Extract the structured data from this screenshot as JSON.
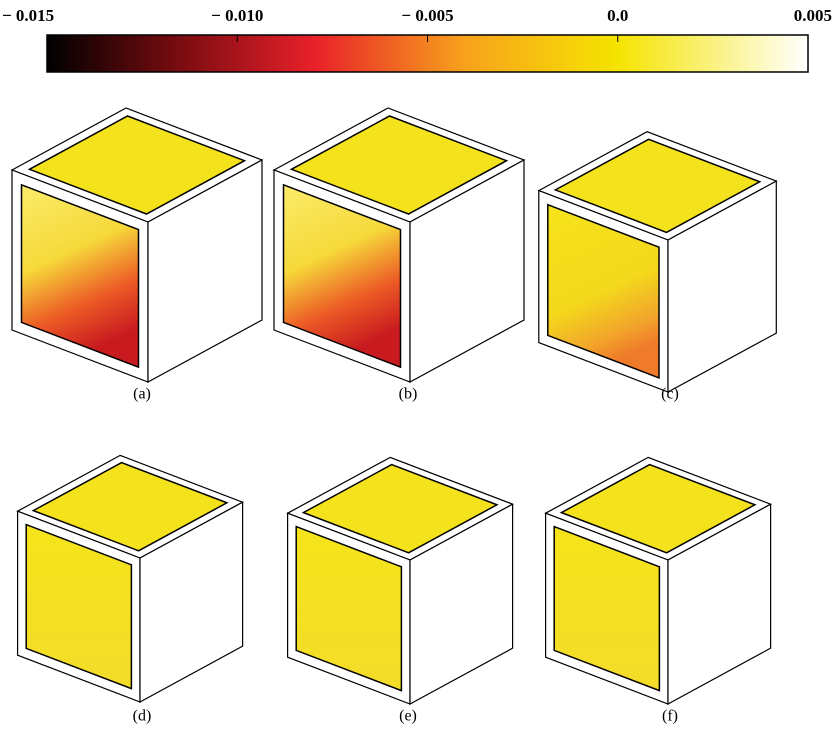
{
  "chart_data": {
    "type": "colorbar",
    "xlim": [
      -0.015,
      0.005
    ],
    "xticks": [
      {
        "value": -0.015,
        "label": "− 0.015"
      },
      {
        "value": -0.01,
        "label": "− 0.010"
      },
      {
        "value": -0.005,
        "label": "− 0.005"
      },
      {
        "value": 0,
        "label": "0.0"
      },
      0.005
    ],
    "colormap": [
      {
        "value": -0.015,
        "color": "#000000"
      },
      {
        "value": -0.0115,
        "color": "#7a0c10"
      },
      {
        "value": -0.008,
        "color": "#e8202a"
      },
      {
        "value": -0.004,
        "color": "#f7a21c"
      },
      {
        "value": 0,
        "color": "#f5e400"
      },
      {
        "value": 0.005,
        "color": "#ffffff"
      }
    ],
    "panels": [
      "(a)",
      "(b)",
      "(c)",
      "(d)",
      "(e)",
      "(f)"
    ]
  }
}
